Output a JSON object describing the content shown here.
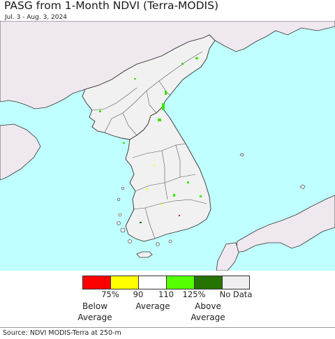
{
  "title": "PASG from 1-Month NDVI (Terra-MODIS)",
  "date_range": "Jul. 3 - Aug. 3, 2024",
  "colors": {
    "ocean": "#c0ffff",
    "land": "#f1f1f1",
    "neighbor_land": "#efe9ef",
    "border": "#333333",
    "speck_green": "#39e600",
    "speck_dark_green": "#1f6e00",
    "speck_yellow": "#ffff00",
    "speck_red": "#e60000"
  },
  "legend": {
    "categories": [
      {
        "name": "below-75",
        "color": "#ff0000"
      },
      {
        "name": "75-90",
        "color": "#ffff00"
      },
      {
        "name": "90-110",
        "color": "#ffffff"
      },
      {
        "name": "110-125",
        "color": "#55ff00"
      },
      {
        "name": "above-125",
        "color": "#267300"
      },
      {
        "name": "no-data",
        "color": "#f0eef0"
      }
    ],
    "ticks": [
      "75%",
      "90",
      "110",
      "125%"
    ],
    "no_data": "No Data",
    "below": "Below\nAverage",
    "average": "Average",
    "above": "Above\nAverage"
  },
  "source": "Source: NDVI MODIS-Terra at 250-m"
}
